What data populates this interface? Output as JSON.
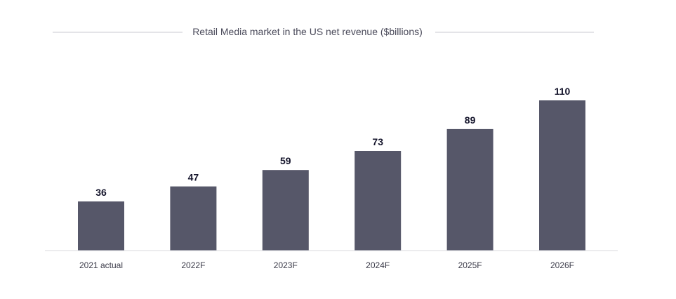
{
  "chart_data": {
    "type": "bar",
    "title": "Retail Media market in the US net revenue ($billions)",
    "categories": [
      "2021 actual",
      "2022F",
      "2023F",
      "2024F",
      "2025F",
      "2026F"
    ],
    "values": [
      36,
      47,
      59,
      73,
      89,
      110
    ],
    "value_labels": [
      "36",
      "47",
      "59",
      "73",
      "89",
      "110"
    ],
    "xlabel": "",
    "ylabel": "",
    "ylim": [
      0,
      110
    ],
    "grid": false,
    "legend": "none",
    "bar_color": "#565769",
    "rule_color": "#c8c8d0"
  }
}
